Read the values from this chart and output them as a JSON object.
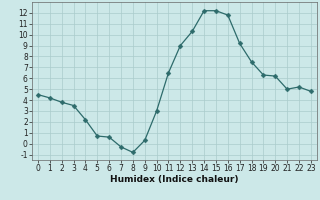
{
  "title": "",
  "xlabel": "Humidex (Indice chaleur)",
  "x": [
    0,
    1,
    2,
    3,
    4,
    5,
    6,
    7,
    8,
    9,
    10,
    11,
    12,
    13,
    14,
    15,
    16,
    17,
    18,
    19,
    20,
    21,
    22,
    23
  ],
  "y": [
    4.5,
    4.2,
    3.8,
    3.5,
    2.2,
    0.7,
    0.6,
    -0.3,
    -0.8,
    0.3,
    3.0,
    6.5,
    9.0,
    10.3,
    12.2,
    12.2,
    11.8,
    9.2,
    7.5,
    6.3,
    6.2,
    5.0,
    5.2,
    4.8
  ],
  "line_color": "#2d6b6b",
  "marker": "D",
  "marker_size": 2.5,
  "bg_color": "#cce8e8",
  "grid_color": "#aacccc",
  "ylim": [
    -1.5,
    13.0
  ],
  "xlim": [
    -0.5,
    23.5
  ],
  "yticks": [
    -1,
    0,
    1,
    2,
    3,
    4,
    5,
    6,
    7,
    8,
    9,
    10,
    11,
    12
  ],
  "xticks": [
    0,
    1,
    2,
    3,
    4,
    5,
    6,
    7,
    8,
    9,
    10,
    11,
    12,
    13,
    14,
    15,
    16,
    17,
    18,
    19,
    20,
    21,
    22,
    23
  ],
  "tick_fontsize": 5.5,
  "label_fontsize": 6.5
}
